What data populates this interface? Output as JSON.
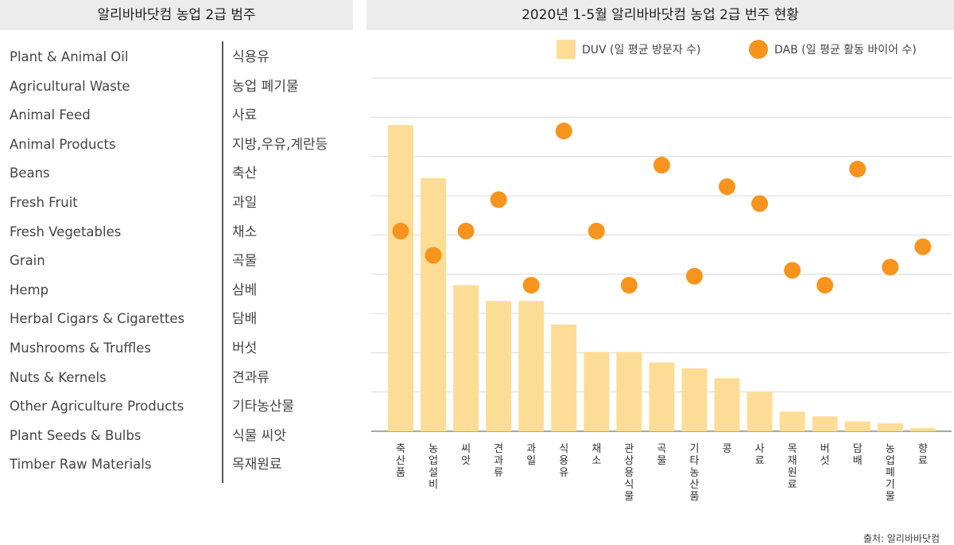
{
  "left_panel": {
    "header": "알리바바닷컴 농업 2급 범주",
    "categories": [
      {
        "en": "Plant & Animal Oil",
        "ko": "식용유"
      },
      {
        "en": "Agricultural Waste",
        "ko": "농업 폐기물"
      },
      {
        "en": "Animal Feed",
        "ko": "사료"
      },
      {
        "en": "Animal Products",
        "ko": "지방,우유,계란등"
      },
      {
        "en": "Beans",
        "ko": "축산"
      },
      {
        "en": "Fresh Fruit",
        "ko": "과일"
      },
      {
        "en": "Fresh Vegetables",
        "ko": "채소"
      },
      {
        "en": "Grain",
        "ko": "곡물"
      },
      {
        "en": "Hemp",
        "ko": "삼베"
      },
      {
        "en": "Herbal Cigars & Cigarettes",
        "ko": "담배"
      },
      {
        "en": "Mushrooms & Truffles",
        "ko": "버섯"
      },
      {
        "en": "Nuts & Kernels",
        "ko": "견과류"
      },
      {
        "en": "Other Agriculture Products",
        "ko": "기타농산물"
      },
      {
        "en": "Plant Seeds & Bulbs",
        "ko": "식물 씨앗"
      },
      {
        "en": "Timber Raw Materials",
        "ko": "목재원료"
      }
    ]
  },
  "source": "출처: 알리바바닷컴",
  "chart_data": {
    "type": "bar",
    "title": "2020년 1-5월 알리바바닷컴 농업 2급 번주 현황",
    "categories": [
      "축산품",
      "농업설비",
      "씨앗",
      "견과류",
      "과일",
      "식용유",
      "채소",
      "관상용식물",
      "곡물",
      "기타농산품",
      "콩",
      "사료",
      "목재원료",
      "버섯",
      "담배",
      "농업폐기물",
      "향료"
    ],
    "series": [
      {
        "name": "DUV (일 평균 방문자 수)",
        "kind": "bar",
        "color": "#fddc96",
        "values": [
          7.8,
          6.45,
          3.72,
          3.32,
          3.32,
          2.72,
          2.02,
          2.02,
          1.75,
          1.6,
          1.35,
          1.0,
          0.5,
          0.38,
          0.25,
          0.2,
          0.08
        ]
      },
      {
        "name": "DAB (일 평균 활동 바이어 수)",
        "kind": "scatter",
        "color": "#f7941d",
        "values": [
          5.1,
          4.48,
          5.1,
          5.9,
          3.72,
          7.65,
          5.1,
          3.72,
          6.78,
          3.95,
          6.23,
          5.8,
          4.1,
          3.72,
          6.68,
          4.18,
          4.7
        ]
      }
    ],
    "ylim": [
      0,
      9
    ],
    "grid": true,
    "legend_position": "top-right"
  }
}
